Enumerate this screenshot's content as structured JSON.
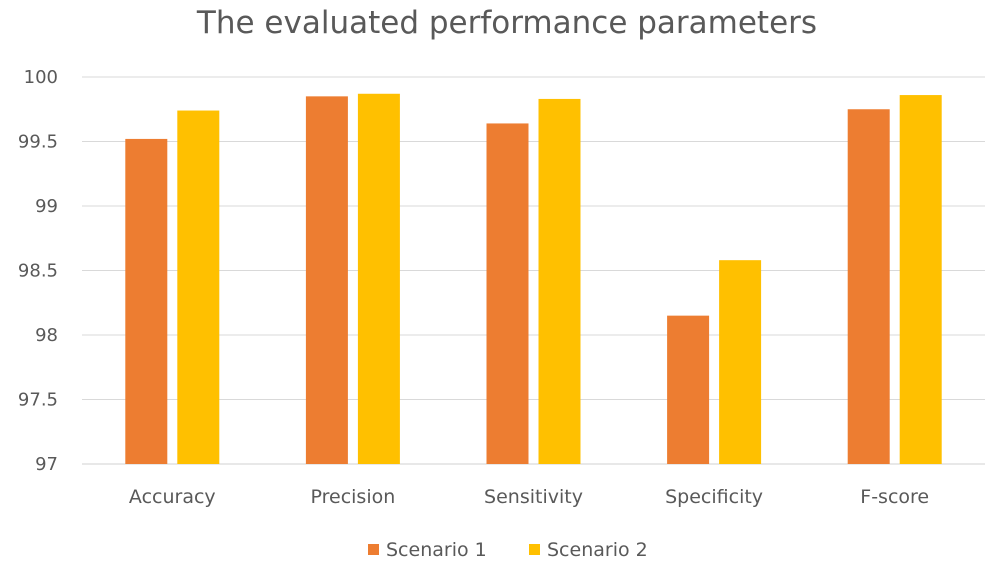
{
  "chart_data": {
    "type": "bar",
    "title": "The evaluated performance parameters",
    "xlabel": "",
    "ylabel": "",
    "categories": [
      "Accuracy",
      "Precision",
      "Sensitivity",
      "Specificity",
      "F-score"
    ],
    "series": [
      {
        "name": "Scenario 1",
        "color": "#ED7D31",
        "values": [
          99.52,
          99.85,
          99.64,
          98.15,
          99.75
        ]
      },
      {
        "name": "Scenario 2",
        "color": "#FFC000",
        "values": [
          99.74,
          99.87,
          99.83,
          98.58,
          99.86
        ]
      }
    ],
    "ylim": [
      97,
      100
    ],
    "yticks": [
      "97",
      "97.5",
      "98",
      "98.5",
      "99",
      "99.5",
      "100"
    ],
    "grid": true,
    "legend_position": "bottom"
  }
}
